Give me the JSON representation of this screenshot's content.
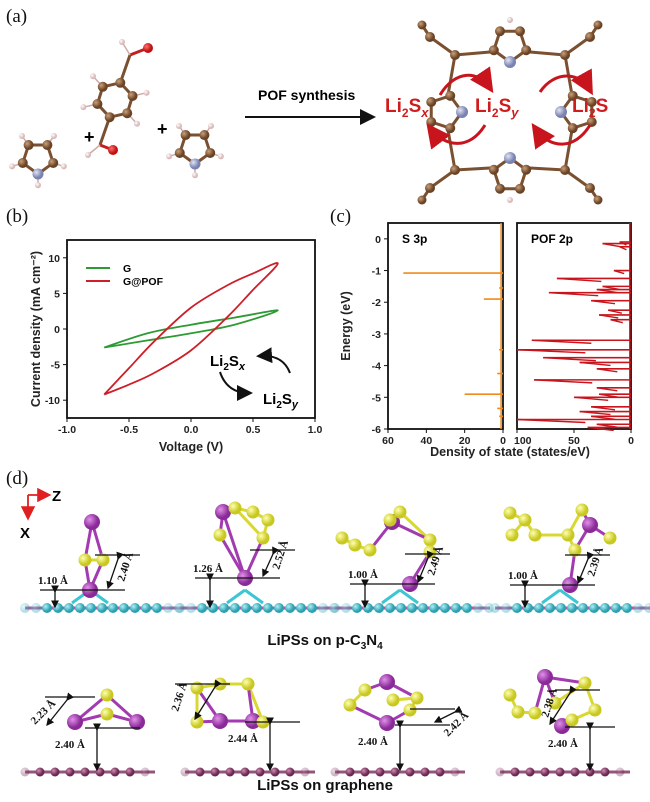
{
  "panel_a": {
    "label": "(a)",
    "reaction_label": "POF synthesis",
    "plus": "+",
    "species": [
      {
        "base": "Li",
        "sub": "2",
        "s": "S",
        "sub2": "x"
      },
      {
        "base": "Li",
        "sub": "2",
        "s": "S",
        "sub2": "y"
      },
      {
        "base": "Li",
        "sub": "2",
        "s": "S",
        "sub2": ""
      }
    ],
    "accent_color": "#d01c1c"
  },
  "panel_b": {
    "label": "(b)"
  },
  "panel_c": {
    "label": "(c)"
  },
  "panel_d": {
    "label": "(d)",
    "axis_z": "Z",
    "axis_x": "X",
    "row1_caption": {
      "text": "LiPSs on p-C",
      "sub1": "3",
      "mid": "N",
      "sub2": "4"
    },
    "row2_caption": "LiPSs on graphene",
    "row1_distances": [
      [
        "1.10 Å",
        "2.40 Å"
      ],
      [
        "1.26 Å",
        "2.52 Å"
      ],
      [
        "1.00 Å",
        "2.49 Å"
      ],
      [
        "1.00 Å",
        "2.39 Å"
      ]
    ],
    "row2_distances": [
      [
        "2.23 Å",
        "2.40 Å"
      ],
      [
        "2.36 Å",
        "2.44 Å"
      ],
      [
        "2.42 Å",
        "2.40 Å"
      ],
      [
        "2.38 Å",
        "2.40 Å"
      ]
    ],
    "colors": {
      "Li": "#a23bb0",
      "S": "#e6e637",
      "substrate": "#3cc6d2",
      "graphene": "#8a3a6c"
    }
  },
  "chart_data": [
    {
      "type": "line",
      "panel": "(b)",
      "xlabel": "Voltage (V)",
      "ylabel": "Current density (mA cm⁻²)",
      "xlim": [
        -1.0,
        1.0
      ],
      "ylim": [
        -12.5,
        12.5
      ],
      "xticks": [
        "-1.0",
        "-0.5",
        "0.0",
        "0.5",
        "1.0"
      ],
      "yticks": [
        "10",
        "5",
        "0",
        "-5",
        "-10"
      ],
      "legend_position": "top-left",
      "annotation": {
        "a": {
          "base": "Li",
          "sub": "2",
          "s": "S",
          "sub2": "x"
        },
        "b": {
          "base": "Li",
          "sub": "2",
          "s": "S",
          "sub2": "y"
        }
      },
      "series": [
        {
          "name": "G",
          "color": "#2e9a35",
          "x": [
            -0.7,
            -0.35,
            0,
            0.35,
            0.7,
            0.35,
            0,
            -0.35,
            -0.7
          ],
          "y": [
            -2.6,
            -0.6,
            0.6,
            1.6,
            2.6,
            0.6,
            -0.6,
            -1.6,
            -2.6
          ]
        },
        {
          "name": "G@POF",
          "color": "#cc1f2a",
          "x": [
            -0.7,
            -0.5,
            -0.3,
            0,
            0.3,
            0.5,
            0.7,
            0.5,
            0.3,
            0,
            -0.3,
            -0.5,
            -0.7
          ],
          "y": [
            -9.2,
            -5.5,
            -1.8,
            3.0,
            6.2,
            7.8,
            9.2,
            5.5,
            1.8,
            -3.0,
            -6.2,
            -7.8,
            -9.2
          ]
        }
      ]
    },
    {
      "type": "line",
      "panel": "(c)",
      "xlabel": "Density of state (states/eV)",
      "ylabel": "Energy (eV)",
      "ylim": [
        -6,
        0.5
      ],
      "yticks": [
        "0",
        "-1",
        "-2",
        "-3",
        "-4",
        "-5",
        "-6"
      ],
      "subplots": [
        {
          "title": "S 3p",
          "color": "#f08a1c",
          "xlim": [
            60,
            0
          ],
          "xticks": [
            "60",
            "40",
            "20",
            "0"
          ],
          "energy": [
            -1.08,
            -1.55,
            -1.9,
            -3.5,
            -4.25,
            -4.9,
            -5.35,
            -5.6
          ],
          "dos": [
            52,
            2,
            10,
            2,
            3,
            20,
            3,
            2
          ]
        },
        {
          "title": "POF 2p",
          "color": "#c8141c",
          "xlim": [
            100,
            0
          ],
          "xticks": [
            "100",
            "50",
            "0"
          ],
          "energy": [
            -0.1,
            -0.15,
            -0.25,
            -1.0,
            -1.25,
            -1.5,
            -1.6,
            -1.7,
            -1.95,
            -2.25,
            -2.4,
            -2.55,
            -3.2,
            -3.5,
            -3.75,
            -3.9,
            -4.1,
            -4.45,
            -4.7,
            -4.9,
            -5.0,
            -5.3,
            -5.45,
            -5.6,
            -5.7,
            -5.85,
            -5.95
          ],
          "dos": [
            10,
            25,
            10,
            15,
            65,
            25,
            30,
            72,
            35,
            20,
            28,
            18,
            87,
            100,
            77,
            45,
            30,
            85,
            30,
            28,
            50,
            35,
            45,
            35,
            100,
            30,
            38
          ]
        }
      ]
    }
  ]
}
